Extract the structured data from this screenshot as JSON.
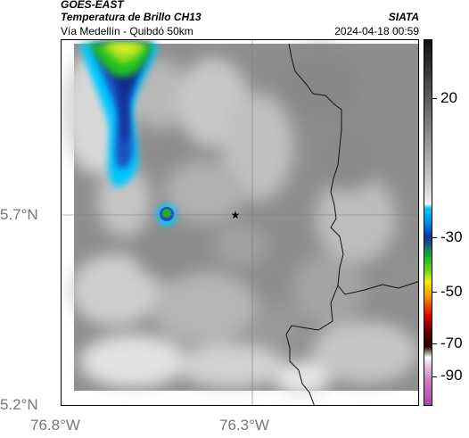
{
  "header": {
    "satellite": "GOES-EAST",
    "product": "Temperatura de Brillo CH13",
    "org": "SIATA",
    "route": "Vía Medellín - Quibdó 50km",
    "timestamp": "2024-04-18 00:59"
  },
  "axes": {
    "lat_labels": [
      "5.7°N",
      "5.2°N"
    ],
    "lon_labels": [
      "76.8°W",
      "76.3°W"
    ]
  },
  "colorbar": {
    "labels": [
      "20",
      "-30",
      "-50",
      "-70",
      "-90"
    ],
    "colors": {
      "top": "#1a1a1a",
      "gray_mid": "#9a9a9a",
      "cyan": "#00c8ff",
      "blue": "#1030a0",
      "green": "#20c020",
      "yellow": "#f0f000",
      "orange": "#f06000",
      "red": "#c00000",
      "dark": "#200000",
      "white": "#ffffff",
      "magenta": "#b040b0"
    }
  },
  "markers": {
    "star_icon": "star-icon"
  }
}
